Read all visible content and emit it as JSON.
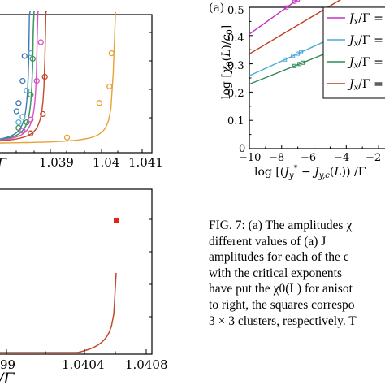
{
  "chart_data": [
    {
      "type": "line",
      "title": "",
      "xlabel": "Γ",
      "ylabel": "",
      "x_tick_labels": [
        "1.039",
        "1.04",
        "1.041"
      ],
      "xlim": [
        1.0375,
        1.0413
      ],
      "series": [
        {
          "color": "#3a78b8",
          "x": [
            1.0379,
            1.038,
            1.0381,
            1.03815,
            1.0382,
            1.0383
          ],
          "markers": [
            [
              1.03795,
              0.3
            ],
            [
              1.038,
              0.36
            ],
            [
              1.0381,
              0.52
            ],
            [
              1.03815,
              0.7
            ]
          ]
        },
        {
          "color": "#5aaed0",
          "x": [
            1.0379,
            1.0381,
            1.0382,
            1.0383,
            1.0384
          ],
          "markers": [
            [
              1.038,
              0.22
            ],
            [
              1.0381,
              0.26
            ],
            [
              1.0382,
              0.45
            ],
            [
              1.0383,
              0.72
            ]
          ]
        },
        {
          "color": "#3b9a55",
          "x": [
            1.0379,
            1.0382,
            1.0383,
            1.0384
          ],
          "markers": [
            [
              1.038,
              0.18
            ],
            [
              1.0382,
              0.22
            ],
            [
              1.0383,
              0.42
            ],
            [
              1.03835,
              0.68
            ]
          ]
        },
        {
          "color": "#d94fc8",
          "x": [
            1.038,
            1.0383,
            1.0384,
            1.0385
          ],
          "markers": [
            [
              1.0381,
              0.16
            ],
            [
              1.0383,
              0.24
            ],
            [
              1.03845,
              0.52
            ],
            [
              1.03855,
              0.8
            ]
          ]
        },
        {
          "color": "#c04a2a",
          "x": [
            1.0381,
            1.0385,
            1.0386,
            1.0387
          ],
          "markers": [
            [
              1.0383,
              0.14
            ],
            [
              1.0386,
              0.28
            ],
            [
              1.03865,
              0.55
            ]
          ]
        },
        {
          "color": "#e8a23a",
          "x": [
            1.038,
            1.039,
            1.0398,
            1.0402,
            1.0404
          ],
          "markers": [
            [
              1.0392,
              0.11
            ],
            [
              1.04,
              0.36
            ],
            [
              1.04025,
              0.48
            ],
            [
              1.0403,
              0.72
            ]
          ]
        }
      ]
    },
    {
      "type": "line",
      "title": "",
      "xlabel": "/Γ",
      "ylabel": "",
      "x_tick_labels": [
        "99",
        "1.0404",
        "1.0408"
      ],
      "series": [
        {
          "color": "#c04a2a",
          "x": [
            1.0393,
            1.0406
          ],
          "end_marker": {
            "x": 1.04063,
            "color": "#e8201c"
          }
        }
      ]
    },
    {
      "type": "line",
      "panel_label": "(a)",
      "title": "",
      "xlabel": "log [(J_y^* − J_{y,c}(L)) /Γ",
      "ylabel": "log [χ0(L)/c0]",
      "xlim": [
        -10,
        -1.2
      ],
      "ylim": [
        0,
        0.5
      ],
      "x_ticks": [
        -10,
        -8,
        -6,
        -4,
        -2
      ],
      "y_ticks": [
        0,
        0.1,
        0.2,
        0.3,
        0.4,
        0.5
      ],
      "legend": {
        "placement": "top-right",
        "entries": [
          {
            "label": "J_x/Γ =",
            "color": "#c030c0"
          },
          {
            "label": "J_x/Γ =",
            "color": "#4aa8d8"
          },
          {
            "label": "J_x/Γ =",
            "color": "#2e8b57"
          },
          {
            "label": "J_x/Γ =",
            "color": "#c0391b"
          }
        ]
      },
      "series": [
        {
          "color": "#c030c0",
          "intercept": 0.405,
          "slope": 0.041,
          "markers_x": [
            -7.7,
            -7.2,
            -7.0,
            -6.8
          ]
        },
        {
          "color": "#c0391b",
          "intercept": 0.335,
          "slope": 0.034,
          "markers_x": []
        },
        {
          "color": "#4aa8d8",
          "intercept": 0.258,
          "slope": 0.026,
          "markers_x": [
            -7.8,
            -7.3,
            -7.0,
            -6.8
          ]
        },
        {
          "color": "#2e8b57",
          "intercept": 0.228,
          "slope": 0.023,
          "markers_x": [
            -7.2,
            -6.9,
            -6.7
          ]
        }
      ]
    }
  ],
  "texts": {
    "panel_a": "(a)",
    "x_ticks_a": [
      "−10",
      "−8",
      "−6",
      "−4",
      "−2"
    ],
    "y_ticks_a": [
      "0",
      "0.1",
      "0.2",
      "0.3",
      "0.4",
      "0.5"
    ],
    "ylabel_a": "log [χ",
    "xlabel_a": "log [(J",
    "legend_labels": [
      "J",
      "J",
      "J",
      "J"
    ],
    "top_left_ticks": [
      "1.039",
      "1.04",
      "1.041"
    ],
    "top_left_xlabel": "Γ",
    "bottom_left_ticks": [
      "99",
      "1.0404",
      "1.0408"
    ],
    "bottom_left_xlabel": "/Γ"
  },
  "caption": {
    "lines": [
      "FIG. 7: (a) The amplitudes χ",
      "different values of (a) J",
      "amplitudes for each of the c",
      "with the critical exponents",
      "have put the χ0(L) for anisot",
      "to right, the squares correspo",
      "3 × 3 clusters, respectively. T"
    ]
  }
}
